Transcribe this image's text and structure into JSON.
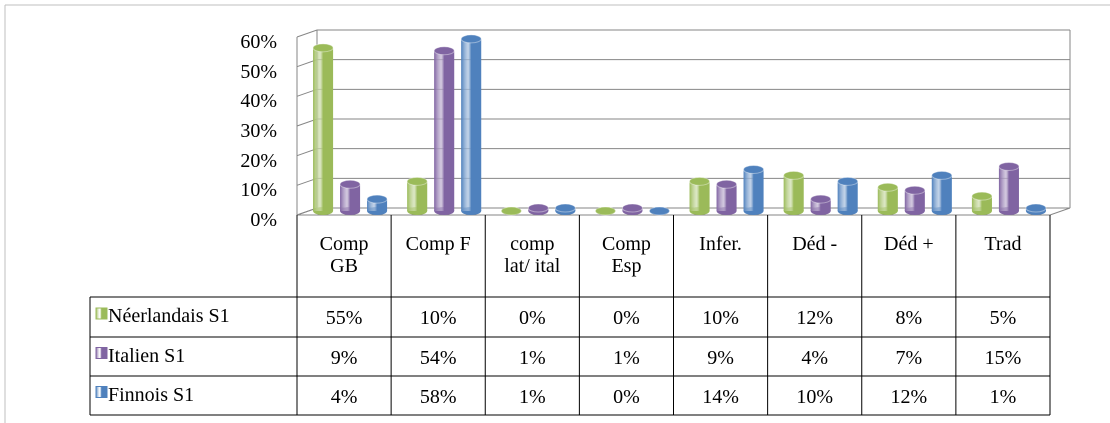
{
  "chart_data": {
    "type": "bar3d",
    "categories": [
      "Comp GB",
      "Comp F",
      "comp lat/ ital",
      "Comp Esp",
      "Infer.",
      "Déd -",
      "Déd +",
      "Trad"
    ],
    "series": [
      {
        "name": "Néerlandais S1",
        "color": "#9bbb59",
        "values": [
          55,
          10,
          0,
          0,
          10,
          12,
          8,
          5
        ],
        "value_labels": [
          "55%",
          "10%",
          "0%",
          "0%",
          "10%",
          "12%",
          "8%",
          "5%"
        ]
      },
      {
        "name": "Italien S1",
        "color": "#8064a2",
        "values": [
          9,
          54,
          1,
          1,
          9,
          4,
          7,
          15
        ],
        "value_labels": [
          "9%",
          "54%",
          "1%",
          "1%",
          "9%",
          "4%",
          "7%",
          "15%"
        ]
      },
      {
        "name": "Finnois S1",
        "color": "#4f81bd",
        "values": [
          4,
          58,
          1,
          0,
          14,
          10,
          12,
          1
        ],
        "value_labels": [
          "4%",
          "58%",
          "1%",
          "0%",
          "14%",
          "10%",
          "12%",
          "1%"
        ]
      }
    ],
    "ylim": [
      0,
      60
    ],
    "yticks": [
      {
        "value": 0,
        "label": "0%"
      },
      {
        "value": 10,
        "label": "10%"
      },
      {
        "value": 20,
        "label": "20%"
      },
      {
        "value": 30,
        "label": "30%"
      },
      {
        "value": 40,
        "label": "40%"
      },
      {
        "value": 50,
        "label": "50%"
      },
      {
        "value": 60,
        "label": "60%"
      }
    ],
    "grid": true,
    "data_table": true
  }
}
